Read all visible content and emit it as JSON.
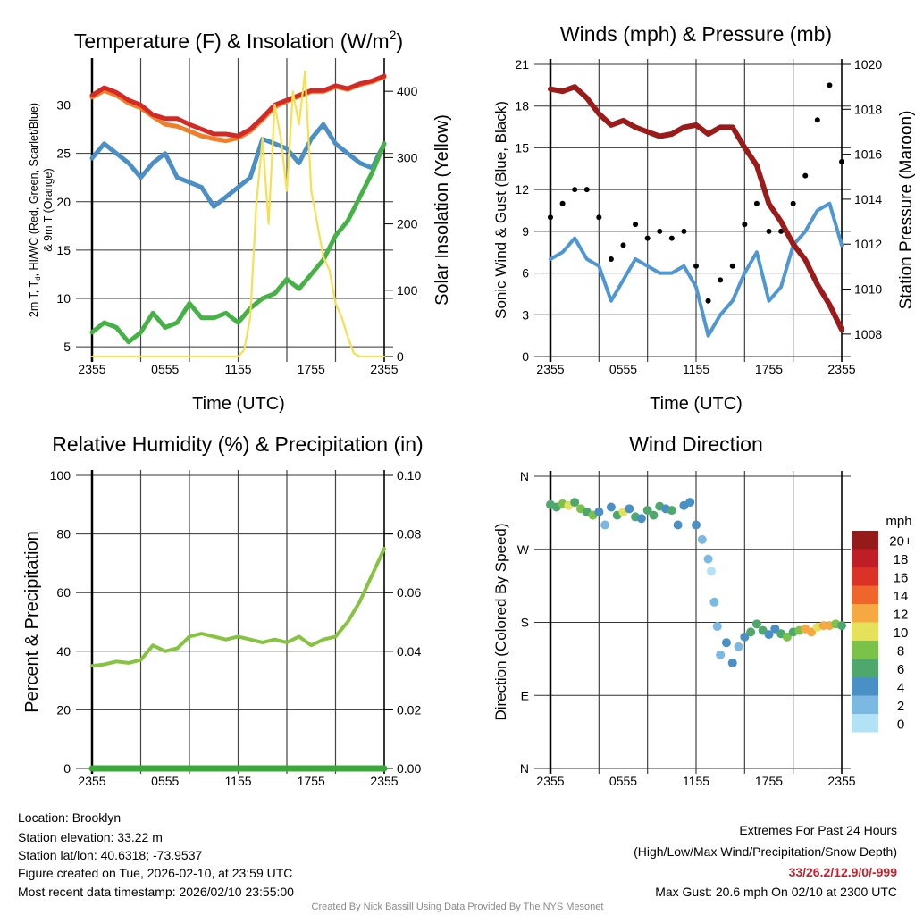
{
  "chart_data": [
    {
      "type": "line",
      "title_parts": [
        "Temperature (F) & Insolation (W/m",
        "2",
        ")"
      ],
      "xlabel": "Time (UTC)",
      "ylabel_parts": [
        "2m T, T",
        "d",
        ", HI/WC (Red, Green, Scarlet/Blue)"
      ],
      "ylabel_line2": "& 9m T (Orange)",
      "ylabel_right": "Solar Insolation (Yellow)",
      "x_ticks": [
        "2355",
        "0555",
        "1155",
        "1755",
        "2355"
      ],
      "y_ticks": [
        "5",
        "10",
        "15",
        "20",
        "25",
        "30"
      ],
      "y_tick_values": [
        5,
        10,
        15,
        20,
        25,
        30
      ],
      "y_right_ticks": [
        "0",
        "100",
        "200",
        "300",
        "400"
      ],
      "y_right_tick_values": [
        0,
        100,
        200,
        300,
        400
      ],
      "ylim": [
        4,
        34.3
      ],
      "ylim_right": [
        0,
        442
      ],
      "x_hours": [
        0,
        1,
        2,
        3,
        4,
        5,
        6,
        7,
        8,
        9,
        10,
        11,
        12,
        13,
        14,
        15,
        16,
        17,
        18,
        19,
        20,
        21,
        22,
        23,
        24
      ],
      "series": [
        {
          "name": "9m T",
          "color": "#f07f2a",
          "axis": "left",
          "values": [
            30.8,
            31.5,
            31,
            30.2,
            29.7,
            28.8,
            28,
            27.8,
            27.3,
            26.8,
            26.5,
            26.3,
            26.6,
            27.3,
            28.5,
            29.8,
            30.4,
            30.9,
            31.4,
            31.4,
            31.9,
            31.6,
            32.1,
            32.4,
            32.9
          ]
        },
        {
          "name": "2m T",
          "color": "#d42a25",
          "axis": "left",
          "values": [
            31,
            31.8,
            31.3,
            30.5,
            30,
            29,
            28.6,
            28.6,
            28,
            27.5,
            27,
            27,
            26.8,
            27.5,
            28.7,
            30,
            30.5,
            31,
            31.5,
            31.5,
            32,
            31.7,
            32.2,
            32.5,
            33
          ]
        },
        {
          "name": "HI/WC",
          "color": "#4a8fc6",
          "axis": "left",
          "values": [
            24.5,
            26,
            25,
            24,
            22.5,
            24,
            25,
            22.5,
            22,
            21.5,
            19.5,
            20.5,
            21.5,
            22.5,
            26.5,
            26,
            25.5,
            24,
            26.5,
            28,
            26,
            25,
            24,
            23.5,
            26
          ]
        },
        {
          "name": "Td",
          "color": "#44b244",
          "axis": "left",
          "values": [
            6.5,
            7.5,
            7,
            5.5,
            6.5,
            8.5,
            7,
            7.5,
            9.5,
            8,
            8,
            8.5,
            7.5,
            9,
            10,
            10.5,
            12,
            11,
            12.5,
            14,
            16.5,
            18,
            20.5,
            23,
            26
          ]
        },
        {
          "name": "Solar Insolation",
          "color": "#f5e050",
          "axis": "right",
          "x_hours": [
            0,
            12,
            12.5,
            13,
            13.5,
            14,
            14.5,
            15,
            15.5,
            16,
            16.5,
            17,
            17.5,
            18,
            18.5,
            19,
            19.5,
            20,
            20.5,
            21,
            21.5,
            22,
            24
          ],
          "values": [
            0,
            0,
            10,
            60,
            230,
            330,
            200,
            380,
            330,
            250,
            400,
            350,
            430,
            250,
            200,
            150,
            130,
            80,
            60,
            30,
            5,
            0,
            0
          ]
        }
      ]
    },
    {
      "type": "line",
      "title": "Winds (mph) & Pressure (mb)",
      "xlabel": "Time (UTC)",
      "ylabel": "Sonic Wind & Gust (Blue, Black)",
      "ylabel_right": "Station Pressure (Maroon)",
      "x_ticks": [
        "2355",
        "0555",
        "1155",
        "1755",
        "2355"
      ],
      "y_ticks": [
        "0",
        "3",
        "6",
        "9",
        "12",
        "15",
        "18",
        "21"
      ],
      "y_tick_values": [
        0,
        3,
        6,
        9,
        12,
        15,
        18,
        21
      ],
      "y_right_ticks": [
        "1008",
        "1010",
        "1012",
        "1014",
        "1016",
        "1018",
        "1020"
      ],
      "y_right_tick_values": [
        1008,
        1010,
        1012,
        1014,
        1016,
        1018,
        1020
      ],
      "ylim": [
        0,
        21
      ],
      "ylim_right": [
        1007.0,
        1020
      ],
      "x_hours": [
        0,
        1,
        2,
        3,
        4,
        5,
        6,
        7,
        8,
        9,
        10,
        11,
        12,
        13,
        14,
        15,
        16,
        17,
        18,
        19,
        20,
        21,
        22,
        23,
        24
      ],
      "series": [
        {
          "name": "Sonic Wind",
          "color": "#4f97d3",
          "axis": "left",
          "kind": "line",
          "values": [
            7,
            7.5,
            8.5,
            7,
            6.5,
            4,
            5.5,
            7,
            6.5,
            6,
            6,
            6.5,
            5,
            1.5,
            3,
            4,
            6,
            7.5,
            4,
            5,
            8,
            9,
            10.5,
            11,
            8
          ]
        },
        {
          "name": "Gust",
          "color": "#000000",
          "axis": "left",
          "kind": "dots",
          "values": [
            10,
            11,
            12,
            12,
            10,
            7,
            8,
            9.5,
            8.5,
            9,
            8.5,
            9,
            6.5,
            4,
            5.5,
            6.5,
            9.5,
            11,
            9,
            9,
            11,
            13,
            17,
            19.5,
            14
          ]
        },
        {
          "name": "Station Pressure",
          "color": "#9b1b1b",
          "axis": "right",
          "kind": "line",
          "values": [
            1018.9,
            1018.8,
            1019,
            1018.5,
            1017.8,
            1017.3,
            1017.5,
            1017.2,
            1017,
            1016.8,
            1016.9,
            1017.2,
            1017.3,
            1016.9,
            1017.2,
            1017.2,
            1016.3,
            1015.5,
            1013.8,
            1013,
            1012,
            1011.3,
            1010.2,
            1009.3,
            1008.2
          ]
        }
      ]
    },
    {
      "type": "line",
      "title": "Relative Humidity (%) & Precipitation (in)",
      "ylabel": "Percent & Precipitation",
      "x_ticks": [
        "2355",
        "0555",
        "1155",
        "1755",
        "2355"
      ],
      "y_ticks": [
        "0",
        "20",
        "40",
        "60",
        "80",
        "100"
      ],
      "y_tick_values": [
        0,
        20,
        40,
        60,
        80,
        100
      ],
      "y_right_ticks": [
        "0.00",
        "0.02",
        "0.04",
        "0.06",
        "0.08",
        "0.10"
      ],
      "y_right_tick_values": [
        0,
        0.02,
        0.04,
        0.06,
        0.08,
        0.1
      ],
      "ylim": [
        0,
        100
      ],
      "ylim_right": [
        0,
        0.1
      ],
      "x_hours": [
        0,
        1,
        2,
        3,
        4,
        5,
        6,
        7,
        8,
        9,
        10,
        11,
        12,
        13,
        14,
        15,
        16,
        17,
        18,
        19,
        20,
        21,
        22,
        23,
        24
      ],
      "series": [
        {
          "name": "Relative Humidity",
          "color": "#86c440",
          "axis": "left",
          "values": [
            35,
            35.5,
            36.5,
            36,
            37,
            42,
            40,
            41,
            45,
            46,
            45,
            44,
            45,
            44,
            43,
            44,
            43,
            45,
            42,
            44,
            45,
            50,
            57,
            66,
            75
          ]
        },
        {
          "name": "Precipitation",
          "color": "#3aa93a",
          "axis": "right",
          "values": [
            0,
            0,
            0,
            0,
            0,
            0,
            0,
            0,
            0,
            0,
            0,
            0,
            0,
            0,
            0,
            0,
            0,
            0,
            0,
            0,
            0,
            0,
            0,
            0,
            0
          ]
        }
      ]
    },
    {
      "type": "scatter",
      "title": "Wind Direction",
      "ylabel": "Direction (Colored By Speed)",
      "x_ticks": [
        "2355",
        "0555",
        "1155",
        "1755",
        "2355"
      ],
      "y_ticks": [
        "N",
        "E",
        "S",
        "W",
        "N"
      ],
      "y_tick_values": [
        0,
        90,
        180,
        270,
        360
      ],
      "ylim": [
        0,
        360
      ],
      "colorbar": {
        "title": "mph",
        "labels": [
          "0",
          "2",
          "4",
          "6",
          "8",
          "10",
          "12",
          "14",
          "16",
          "18",
          "20+"
        ],
        "colors": [
          "#b3e2f6",
          "#7cb9e2",
          "#4a90c6",
          "#4ea86e",
          "#7bc24a",
          "#e6e15a",
          "#f6a843",
          "#f0652b",
          "#dc3127",
          "#c01e26",
          "#951b1b"
        ]
      },
      "points": [
        [
          0,
          325,
          7
        ],
        [
          0.5,
          322,
          6
        ],
        [
          1,
          326,
          8
        ],
        [
          1.5,
          324,
          10
        ],
        [
          2,
          328,
          7
        ],
        [
          2.5,
          320,
          8
        ],
        [
          3,
          316,
          6
        ],
        [
          3.5,
          312,
          8
        ],
        [
          4,
          316,
          4
        ],
        [
          4.5,
          300,
          3
        ],
        [
          5,
          322,
          5
        ],
        [
          5.5,
          312,
          7
        ],
        [
          6,
          316,
          10
        ],
        [
          6.5,
          320,
          4
        ],
        [
          7,
          310,
          6
        ],
        [
          7.5,
          308,
          5
        ],
        [
          8,
          318,
          7
        ],
        [
          8.5,
          312,
          6
        ],
        [
          9,
          323,
          6
        ],
        [
          9.5,
          320,
          4
        ],
        [
          10,
          318,
          6
        ],
        [
          10.5,
          300,
          4
        ],
        [
          11,
          324,
          5
        ],
        [
          11.5,
          328,
          4
        ],
        [
          12,
          300,
          4
        ],
        [
          12.5,
          282,
          3
        ],
        [
          13,
          258,
          2
        ],
        [
          13.25,
          243,
          1
        ],
        [
          13.5,
          205,
          3
        ],
        [
          13.75,
          175,
          2
        ],
        [
          14,
          140,
          2
        ],
        [
          14.5,
          155,
          4
        ],
        [
          15,
          130,
          4
        ],
        [
          15.5,
          150,
          3
        ],
        [
          16,
          162,
          5
        ],
        [
          16.5,
          168,
          6
        ],
        [
          17,
          178,
          6
        ],
        [
          17.5,
          170,
          7
        ],
        [
          18,
          165,
          4
        ],
        [
          18.5,
          172,
          4
        ],
        [
          19,
          166,
          6
        ],
        [
          19.5,
          162,
          8
        ],
        [
          20,
          168,
          7
        ],
        [
          20.5,
          170,
          8
        ],
        [
          21,
          172,
          12
        ],
        [
          21.5,
          168,
          12
        ],
        [
          22,
          174,
          10
        ],
        [
          22.5,
          176,
          12
        ],
        [
          23,
          176,
          12
        ],
        [
          23.5,
          178,
          8
        ],
        [
          24,
          176,
          7
        ]
      ]
    }
  ],
  "info": {
    "location": "Location: Brooklyn",
    "elevation": "Station elevation: 33.22 m",
    "latlon": "Station lat/lon: 40.6318; -73.9537",
    "created": "Figure created on Tue, 2026-02-10, at 23:59 UTC",
    "recent": "Most recent data timestamp: 2026/02/10 23:55:00"
  },
  "extremes": {
    "title": "Extremes For Past 24 Hours",
    "subtitle": "(High/Low/Max Wind/Precipitation/Snow Depth)",
    "values": "33/26.2/12.9/0/-999",
    "values_color": "#c8202a",
    "max_gust": "Max Gust: 20.6 mph On 02/10 at 2300 UTC"
  },
  "credit": "Created By Nick Bassill Using Data Provided By The NYS Mesonet"
}
